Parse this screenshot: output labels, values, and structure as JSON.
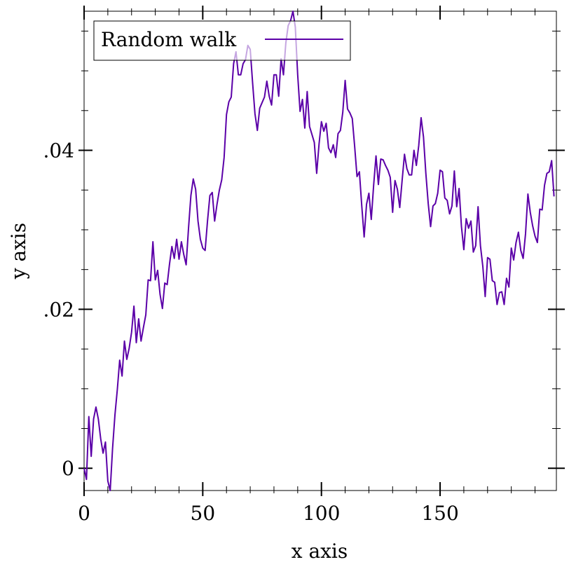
{
  "chart_data": {
    "type": "line",
    "xlabel": "x axis",
    "ylabel": "y axis",
    "xlim": [
      0,
      199
    ],
    "ylim": [
      -0.0028,
      0.0575
    ],
    "x_ticks": [
      0,
      50,
      100,
      150
    ],
    "x_tick_labels": [
      "0",
      "50",
      "100",
      "150"
    ],
    "y_ticks": [
      0,
      0.02,
      0.04
    ],
    "y_tick_labels": [
      "0",
      ".02",
      ".04"
    ],
    "grid": false,
    "legend_position": "top-left",
    "series": [
      {
        "name": "Random walk",
        "color": "#5b00a8",
        "x_start": 0,
        "x_step": 1,
        "y": [
          0,
          -0.0014,
          0.0065,
          0.0015,
          0.0062,
          0.0077,
          0.0062,
          0.0037,
          0.0019,
          0.0033,
          -0.0016,
          -0.0028,
          0.0025,
          0.0067,
          0.0099,
          0.0136,
          0.0116,
          0.016,
          0.0137,
          0.0151,
          0.0171,
          0.0204,
          0.0158,
          0.0188,
          0.016,
          0.0177,
          0.0193,
          0.0237,
          0.0236,
          0.0285,
          0.0237,
          0.0249,
          0.0219,
          0.0201,
          0.0233,
          0.0231,
          0.0257,
          0.0279,
          0.0264,
          0.0288,
          0.0263,
          0.0285,
          0.0269,
          0.0256,
          0.0302,
          0.0343,
          0.0364,
          0.0351,
          0.0311,
          0.0288,
          0.0277,
          0.0274,
          0.0311,
          0.0343,
          0.0347,
          0.0311,
          0.0332,
          0.035,
          0.0363,
          0.0391,
          0.0445,
          0.0461,
          0.0467,
          0.0509,
          0.0524,
          0.0495,
          0.0495,
          0.0509,
          0.0514,
          0.0532,
          0.0527,
          0.0485,
          0.0446,
          0.0425,
          0.0453,
          0.046,
          0.0467,
          0.0487,
          0.0468,
          0.0457,
          0.0495,
          0.0495,
          0.0468,
          0.0515,
          0.0495,
          0.0535,
          0.0557,
          0.0563,
          0.0575,
          0.0555,
          0.0495,
          0.0449,
          0.0464,
          0.0428,
          0.0474,
          0.043,
          0.042,
          0.041,
          0.0371,
          0.0408,
          0.0436,
          0.0424,
          0.0434,
          0.0403,
          0.0397,
          0.0407,
          0.0391,
          0.0421,
          0.0425,
          0.0448,
          0.0488,
          0.0452,
          0.0447,
          0.044,
          0.0405,
          0.0367,
          0.0373,
          0.033,
          0.0291,
          0.0332,
          0.0346,
          0.0313,
          0.0356,
          0.0393,
          0.0357,
          0.0389,
          0.0388,
          0.0381,
          0.0375,
          0.0366,
          0.0322,
          0.0362,
          0.0351,
          0.0328,
          0.0362,
          0.0395,
          0.0377,
          0.0369,
          0.0369,
          0.04,
          0.0381,
          0.0406,
          0.0441,
          0.0417,
          0.0371,
          0.0333,
          0.0304,
          0.033,
          0.0333,
          0.0346,
          0.0375,
          0.0373,
          0.034,
          0.0337,
          0.032,
          0.033,
          0.0374,
          0.0329,
          0.0352,
          0.0304,
          0.0275,
          0.0314,
          0.0302,
          0.0311,
          0.0272,
          0.028,
          0.0329,
          0.028,
          0.0254,
          0.0216,
          0.0265,
          0.0263,
          0.0236,
          0.0234,
          0.0206,
          0.0221,
          0.0222,
          0.0206,
          0.0239,
          0.0228,
          0.0277,
          0.0262,
          0.0284,
          0.0297,
          0.0274,
          0.0264,
          0.0295,
          0.0345,
          0.0322,
          0.0305,
          0.0292,
          0.0284,
          0.0326,
          0.0325,
          0.0356,
          0.0371,
          0.0373,
          0.0387,
          0.0342
        ]
      }
    ]
  }
}
